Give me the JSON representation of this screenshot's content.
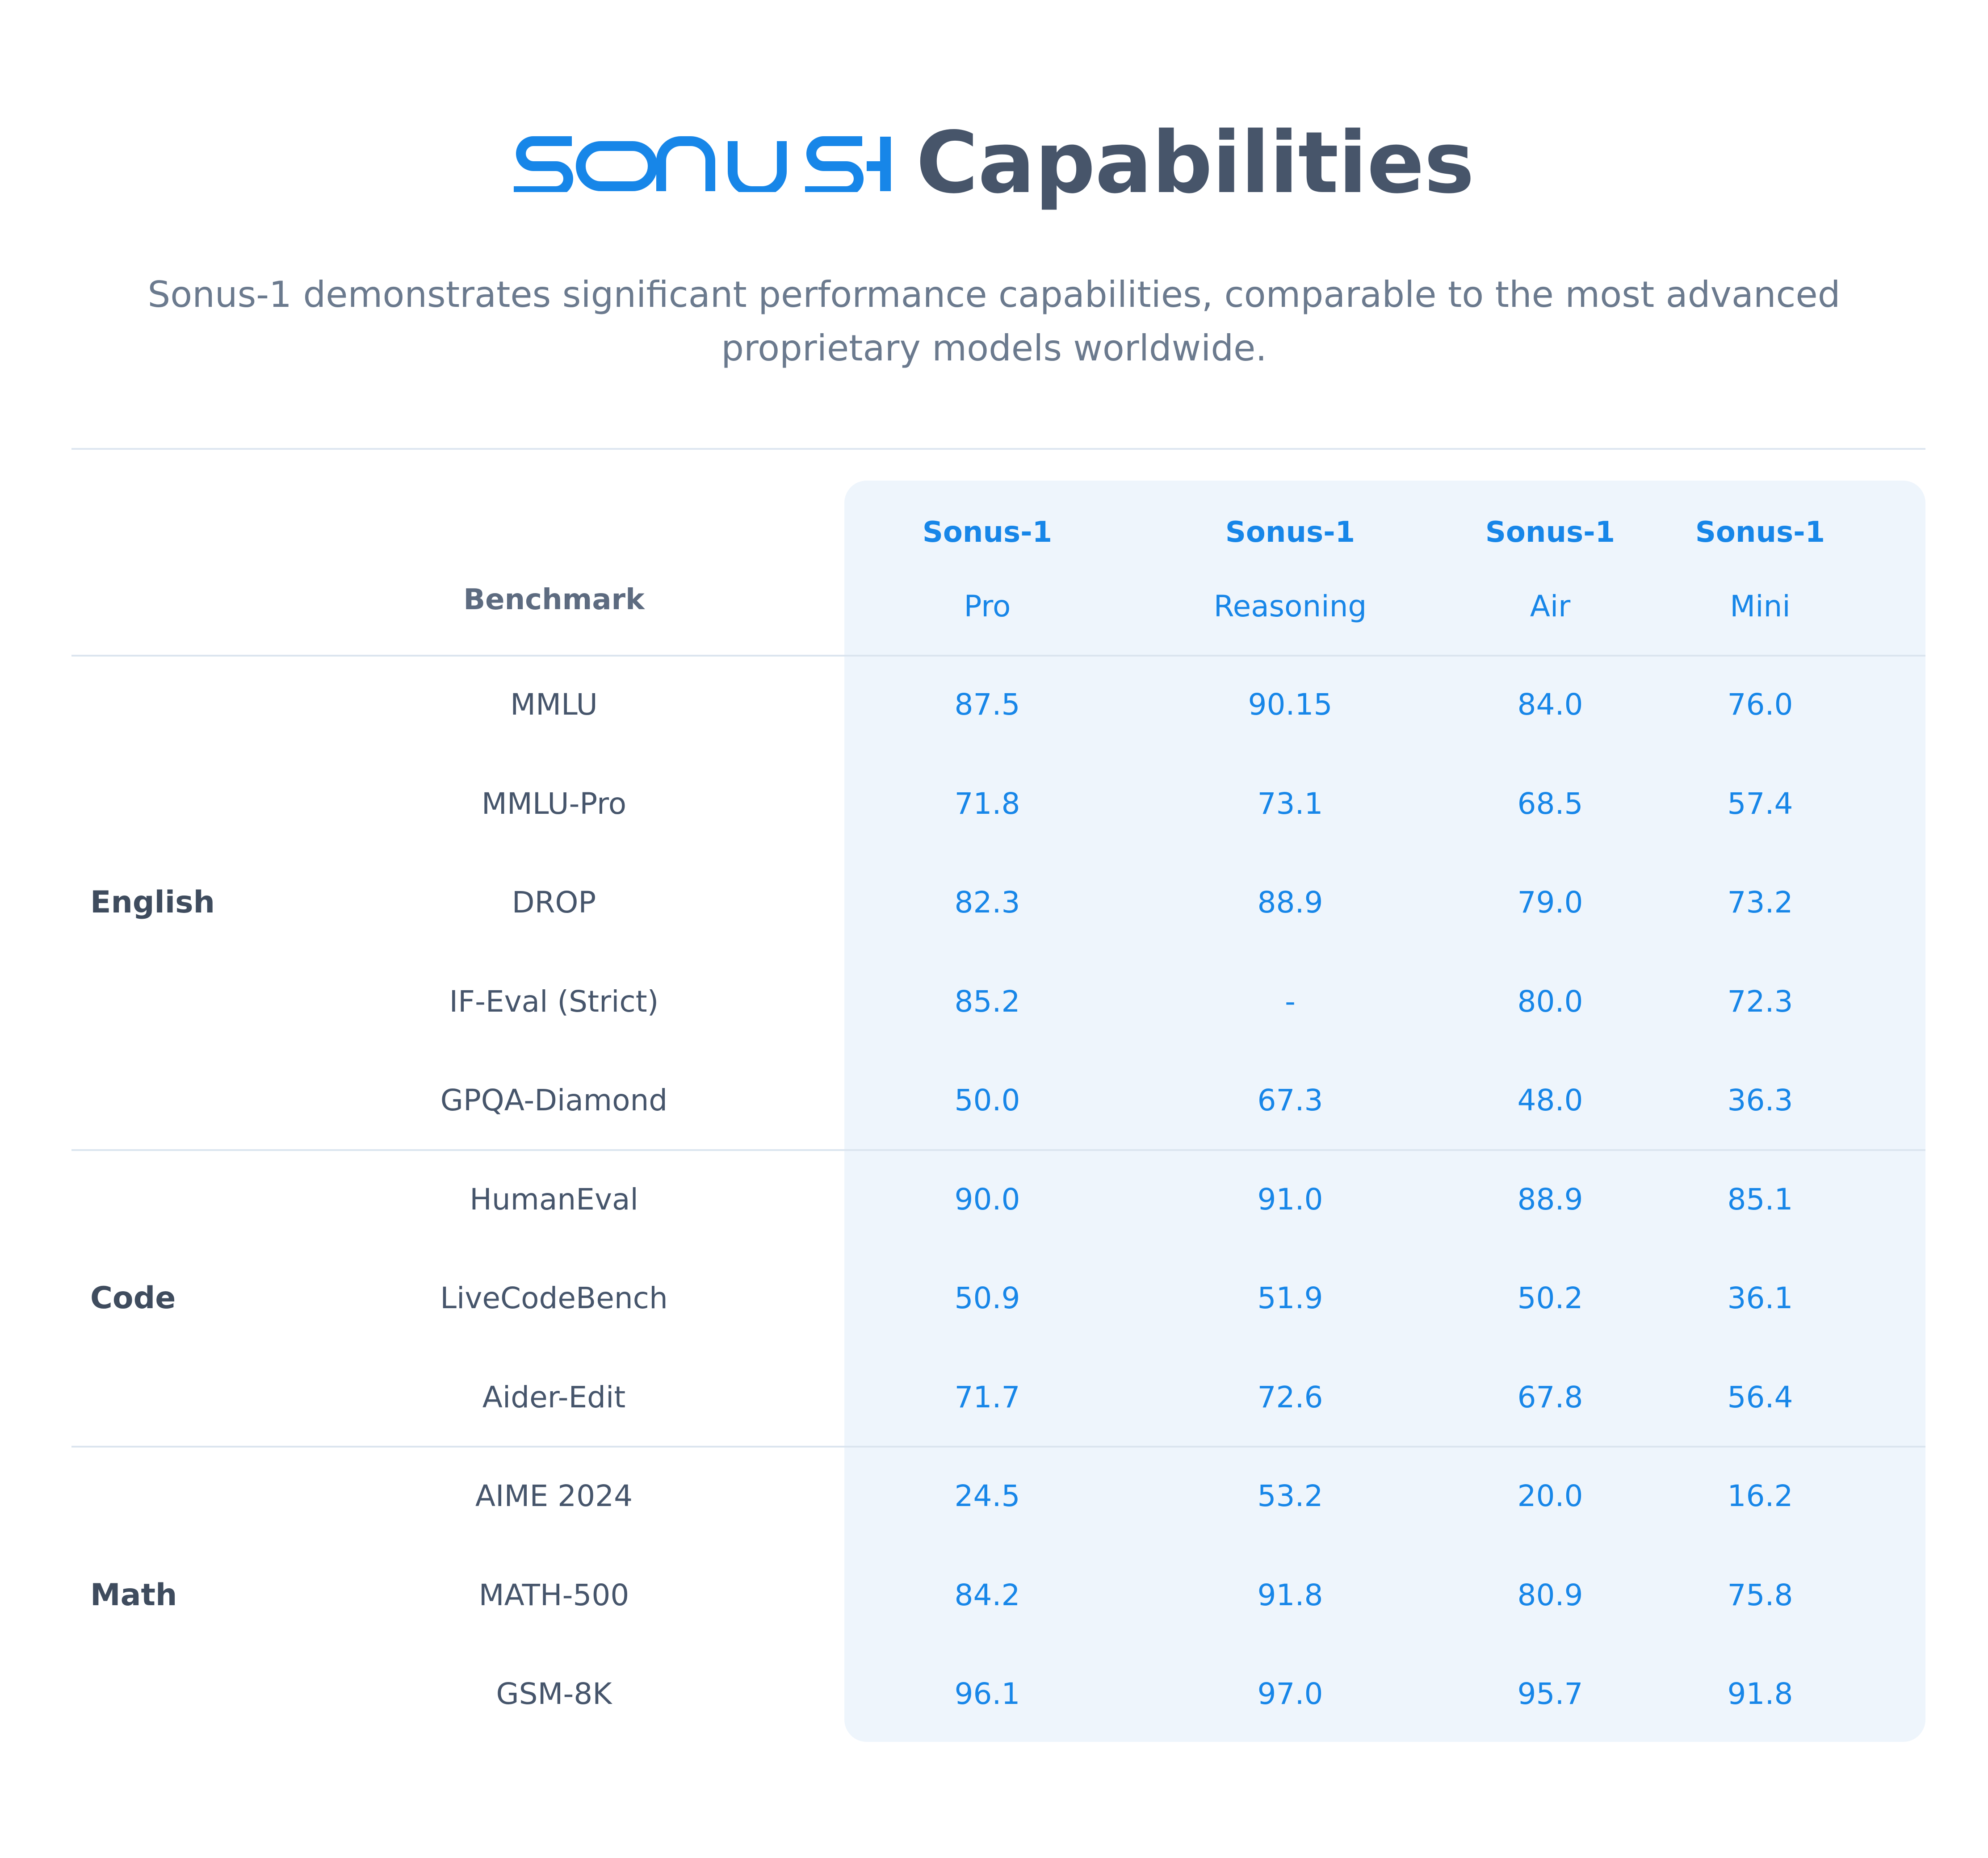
{
  "header": {
    "logo_text": "SONUS-1",
    "title": "Capabilities",
    "subtitle": "Sonus-1 demonstrates significant performance capabilities, comparable to the most advanced proprietary models worldwide."
  },
  "colors": {
    "brand": "#1786e8",
    "heading": "#47556a",
    "panel": "#eef5fc"
  },
  "table": {
    "benchmark_header": "Benchmark",
    "models": [
      {
        "name": "Sonus-1",
        "variant": "Pro"
      },
      {
        "name": "Sonus-1",
        "variant": "Reasoning"
      },
      {
        "name": "Sonus-1",
        "variant": "Air"
      },
      {
        "name": "Sonus-1",
        "variant": "Mini"
      }
    ],
    "groups": [
      {
        "name": "English",
        "rows": [
          {
            "benchmark": "MMLU",
            "values": [
              "87.5",
              "90.15",
              "84.0",
              "76.0"
            ]
          },
          {
            "benchmark": "MMLU-Pro",
            "values": [
              "71.8",
              "73.1",
              "68.5",
              "57.4"
            ]
          },
          {
            "benchmark": "DROP",
            "values": [
              "82.3",
              "88.9",
              "79.0",
              "73.2"
            ]
          },
          {
            "benchmark": "IF-Eval (Strict)",
            "values": [
              "85.2",
              "-",
              "80.0",
              "72.3"
            ]
          },
          {
            "benchmark": "GPQA-Diamond",
            "values": [
              "50.0",
              "67.3",
              "48.0",
              "36.3"
            ]
          }
        ]
      },
      {
        "name": "Code",
        "rows": [
          {
            "benchmark": "HumanEval",
            "values": [
              "90.0",
              "91.0",
              "88.9",
              "85.1"
            ]
          },
          {
            "benchmark": "LiveCodeBench",
            "values": [
              "50.9",
              "51.9",
              "50.2",
              "36.1"
            ]
          },
          {
            "benchmark": "Aider-Edit",
            "values": [
              "71.7",
              "72.6",
              "67.8",
              "56.4"
            ]
          }
        ]
      },
      {
        "name": "Math",
        "rows": [
          {
            "benchmark": "AIME 2024",
            "values": [
              "24.5",
              "53.2",
              "20.0",
              "16.2"
            ]
          },
          {
            "benchmark": "MATH-500",
            "values": [
              "84.2",
              "91.8",
              "80.9",
              "75.8"
            ]
          },
          {
            "benchmark": "GSM-8K",
            "values": [
              "96.1",
              "97.0",
              "95.7",
              "91.8"
            ]
          }
        ]
      }
    ]
  }
}
